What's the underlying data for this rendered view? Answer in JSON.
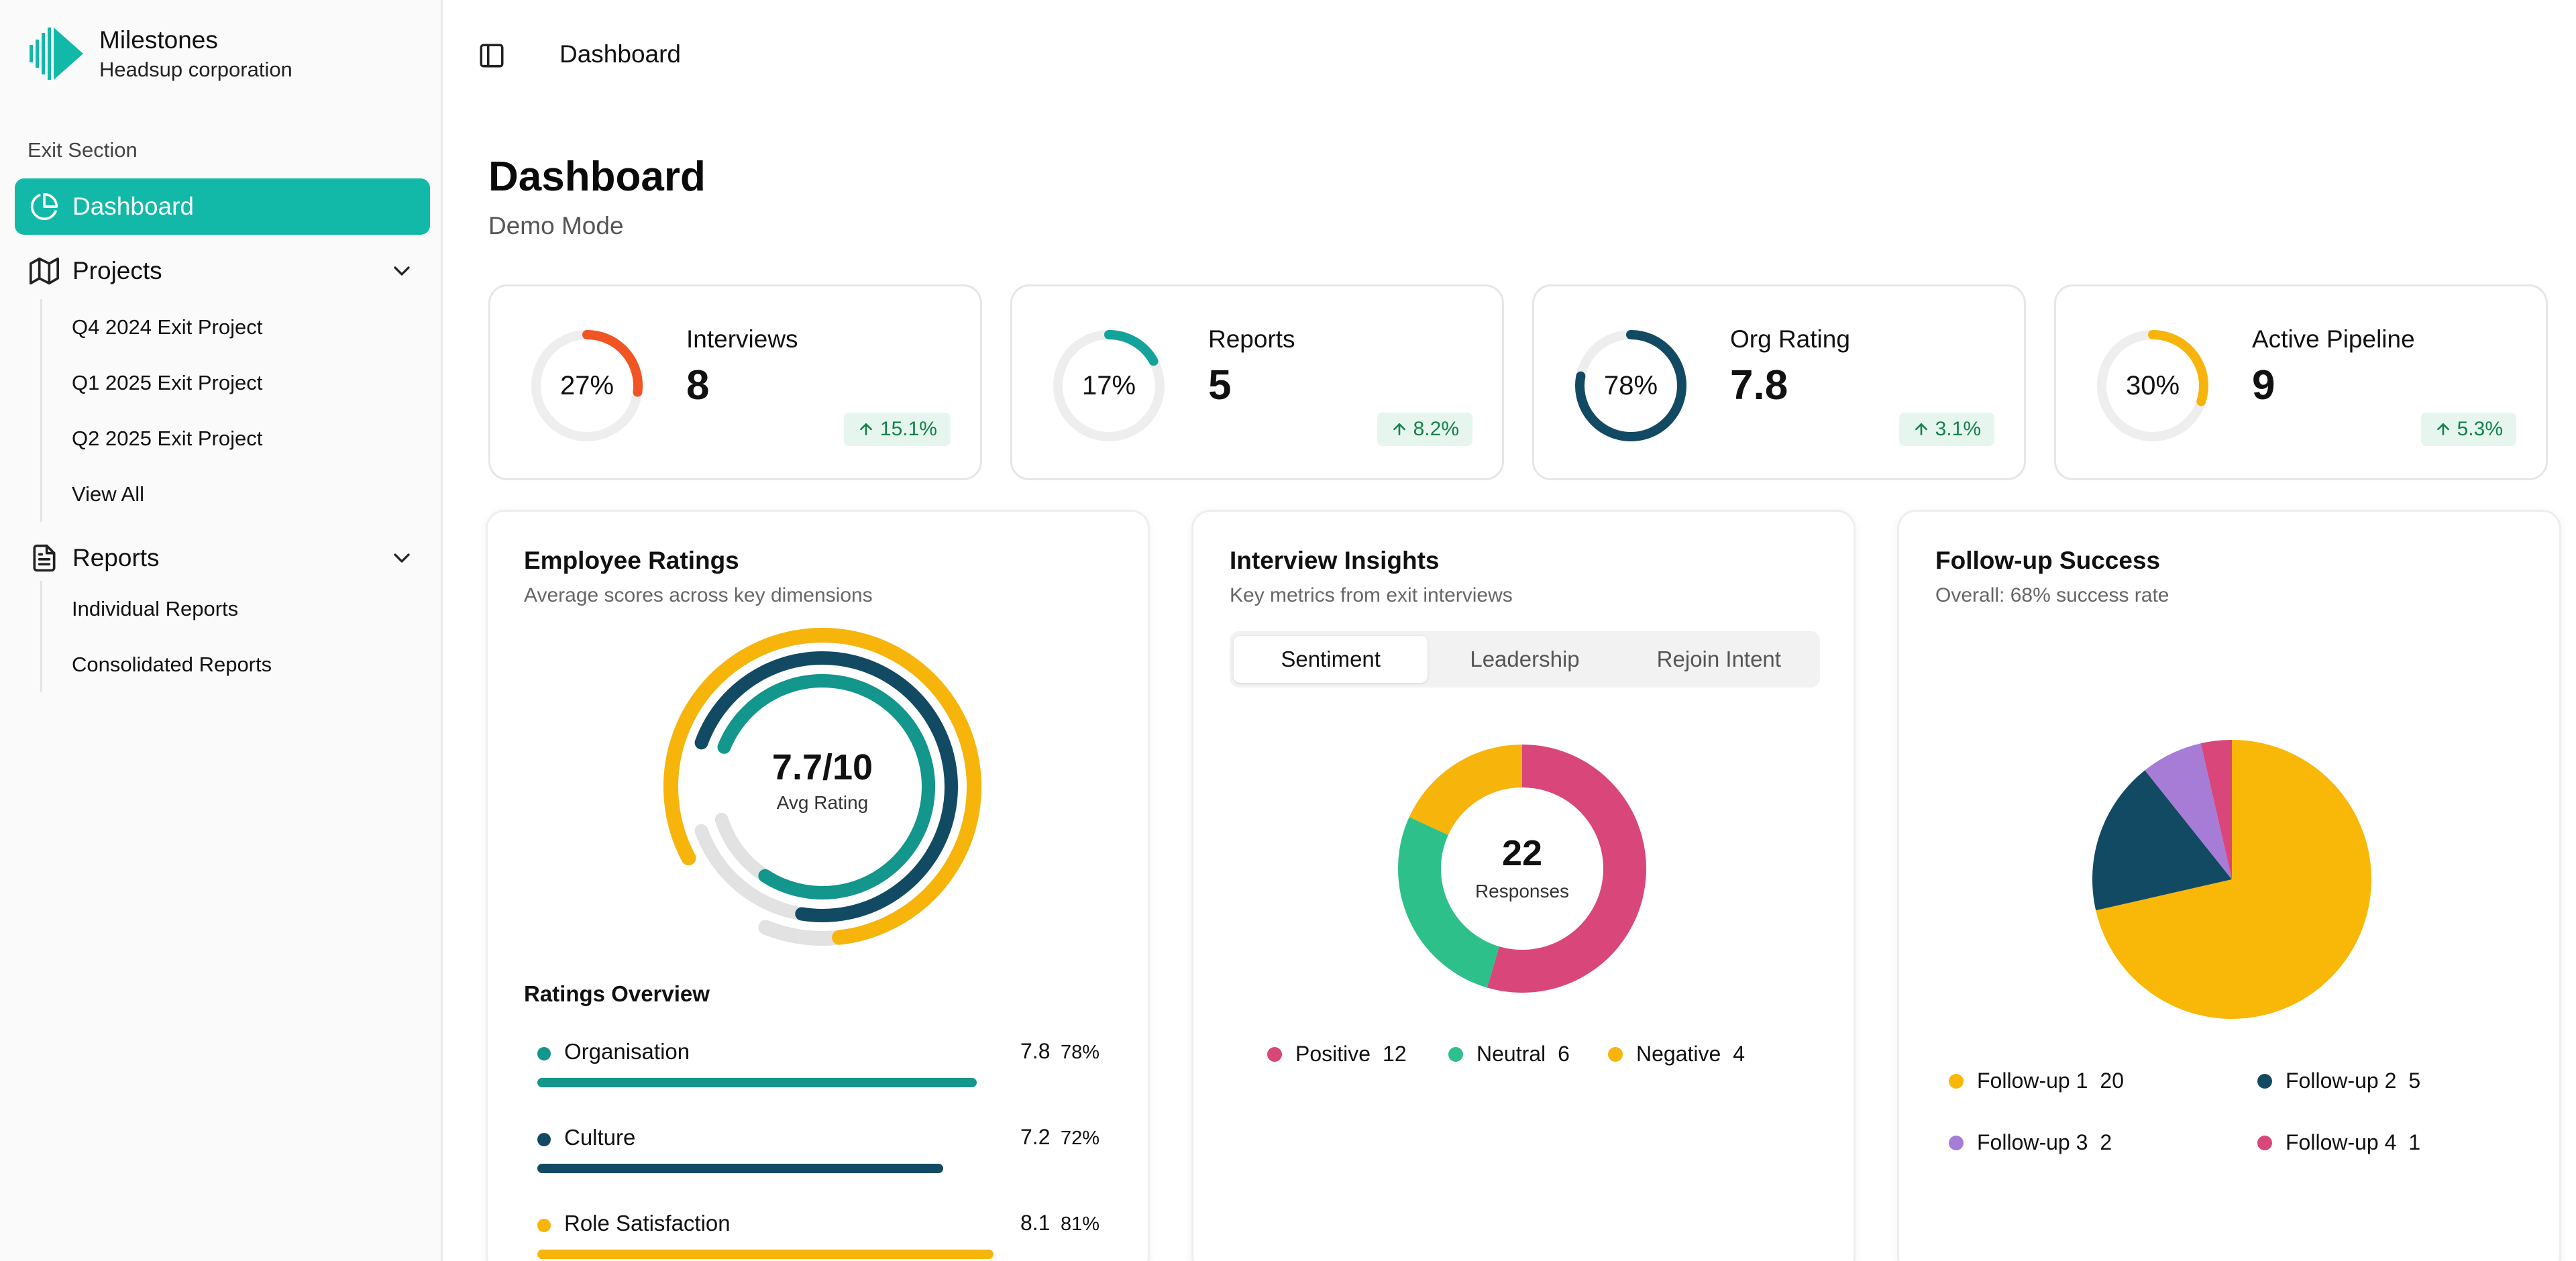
{
  "brand": {
    "name": "Milestones",
    "org": "Headsup corporation",
    "logo_icon": "milestones-logo-icon"
  },
  "sidebar": {
    "section_label": "Exit Section",
    "active": {
      "label": "Dashboard",
      "icon": "pie-chart-icon"
    },
    "projects": {
      "label": "Projects",
      "icon": "map-icon",
      "items": [
        "Q4 2024 Exit Project",
        "Q1 2025 Exit Project",
        "Q2 2025 Exit Project",
        "View All"
      ]
    },
    "reports": {
      "label": "Reports",
      "icon": "file-text-icon",
      "items": [
        "Individual Reports",
        "Consolidated Reports"
      ]
    }
  },
  "header": {
    "breadcrumb": "Dashboard",
    "toggle_icon": "sidebar-toggle-icon"
  },
  "page": {
    "title": "Dashboard",
    "subtitle": "Demo Mode"
  },
  "stats": [
    {
      "label": "Interviews",
      "value": "8",
      "percent": "27%",
      "fraction": 0.27,
      "color": "#f05523",
      "change": "15.1%"
    },
    {
      "label": "Reports",
      "value": "5",
      "percent": "17%",
      "fraction": 0.17,
      "color": "#13a39a",
      "change": "8.2%"
    },
    {
      "label": "Org Rating",
      "value": "7.8",
      "percent": "78%",
      "fraction": 0.78,
      "color": "#134a63",
      "change": "3.1%"
    },
    {
      "label": "Active Pipeline",
      "value": "9",
      "percent": "30%",
      "fraction": 0.3,
      "color": "#f7b50c",
      "change": "5.3%"
    }
  ],
  "employee_ratings": {
    "title": "Employee Ratings",
    "subtitle": "Average scores across key dimensions",
    "center_value": "7.7/10",
    "center_label": "Avg Rating",
    "overview_title": "Ratings Overview",
    "rows": [
      {
        "name": "Organisation",
        "value": "7.8",
        "percent": "78%",
        "fraction": 0.78,
        "color": "#13968c"
      },
      {
        "name": "Culture",
        "value": "7.2",
        "percent": "72%",
        "fraction": 0.72,
        "color": "#134a63"
      },
      {
        "name": "Role Satisfaction",
        "value": "8.1",
        "percent": "81%",
        "fraction": 0.81,
        "color": "#f7b50c"
      }
    ]
  },
  "interview_insights": {
    "title": "Interview Insights",
    "subtitle": "Key metrics from exit interviews",
    "tabs": [
      "Sentiment",
      "Leadership",
      "Rejoin Intent"
    ],
    "active_tab": "Sentiment",
    "center_value": "22",
    "center_label": "Responses"
  },
  "followup": {
    "title": "Follow-up Success",
    "subtitle": "Overall: 68% success rate"
  },
  "chart_data": [
    {
      "type": "pie",
      "chart": "sentiment",
      "donut": true,
      "categories": [
        "Positive",
        "Neutral",
        "Negative"
      ],
      "values": [
        12,
        6,
        4
      ],
      "colors": [
        "#d9467a",
        "#2ec08b",
        "#f7b50c"
      ],
      "center_text": "22",
      "center_label": "Responses"
    },
    {
      "type": "pie",
      "chart": "followup",
      "donut": false,
      "categories": [
        "Follow-up 1",
        "Follow-up 2",
        "Follow-up 3",
        "Follow-up 4"
      ],
      "values": [
        20,
        5,
        2,
        1
      ],
      "colors": [
        "#f9b707",
        "#134a63",
        "#a77cd6",
        "#d9467a"
      ]
    }
  ]
}
